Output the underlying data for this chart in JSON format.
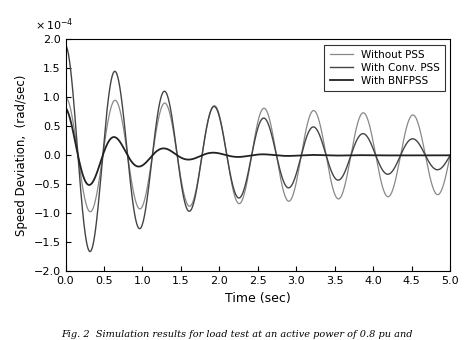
{
  "title": "",
  "xlabel": "Time (sec)",
  "ylabel": "Speed Deviation,  (rad/sec)",
  "xlim": [
    0,
    5
  ],
  "ylim": [
    -2,
    2
  ],
  "yticks": [
    -2,
    -1.5,
    -1,
    -0.5,
    0,
    0.5,
    1,
    1.5,
    2
  ],
  "xticks": [
    0,
    0.5,
    1,
    1.5,
    2,
    2.5,
    3,
    3.5,
    4,
    4.5,
    5
  ],
  "legend": [
    "Without PSS",
    "With Conv. PSS",
    "With BNFPSS"
  ],
  "background_color": "#ffffff",
  "caption": "Fig. 2  Simulation results for load test at an active power of 0.8 pu and",
  "freq_nopss": 1.55,
  "amp_nopss": 1.0,
  "decay_nopss": 0.08,
  "phase_nopss": 0.0,
  "freq_conv": 1.55,
  "amp_conv": 1.9,
  "decay_conv": 0.42,
  "phase_conv": 0.0,
  "freq_bnf": 1.55,
  "amp_bnf": 0.82,
  "decay_bnf": 1.5,
  "phase_bnf": 0.0,
  "color_nopss": "#888888",
  "color_conv": "#444444",
  "color_bnf": "#222222",
  "lw_nopss": 0.9,
  "lw_conv": 1.0,
  "lw_bnf": 1.3
}
